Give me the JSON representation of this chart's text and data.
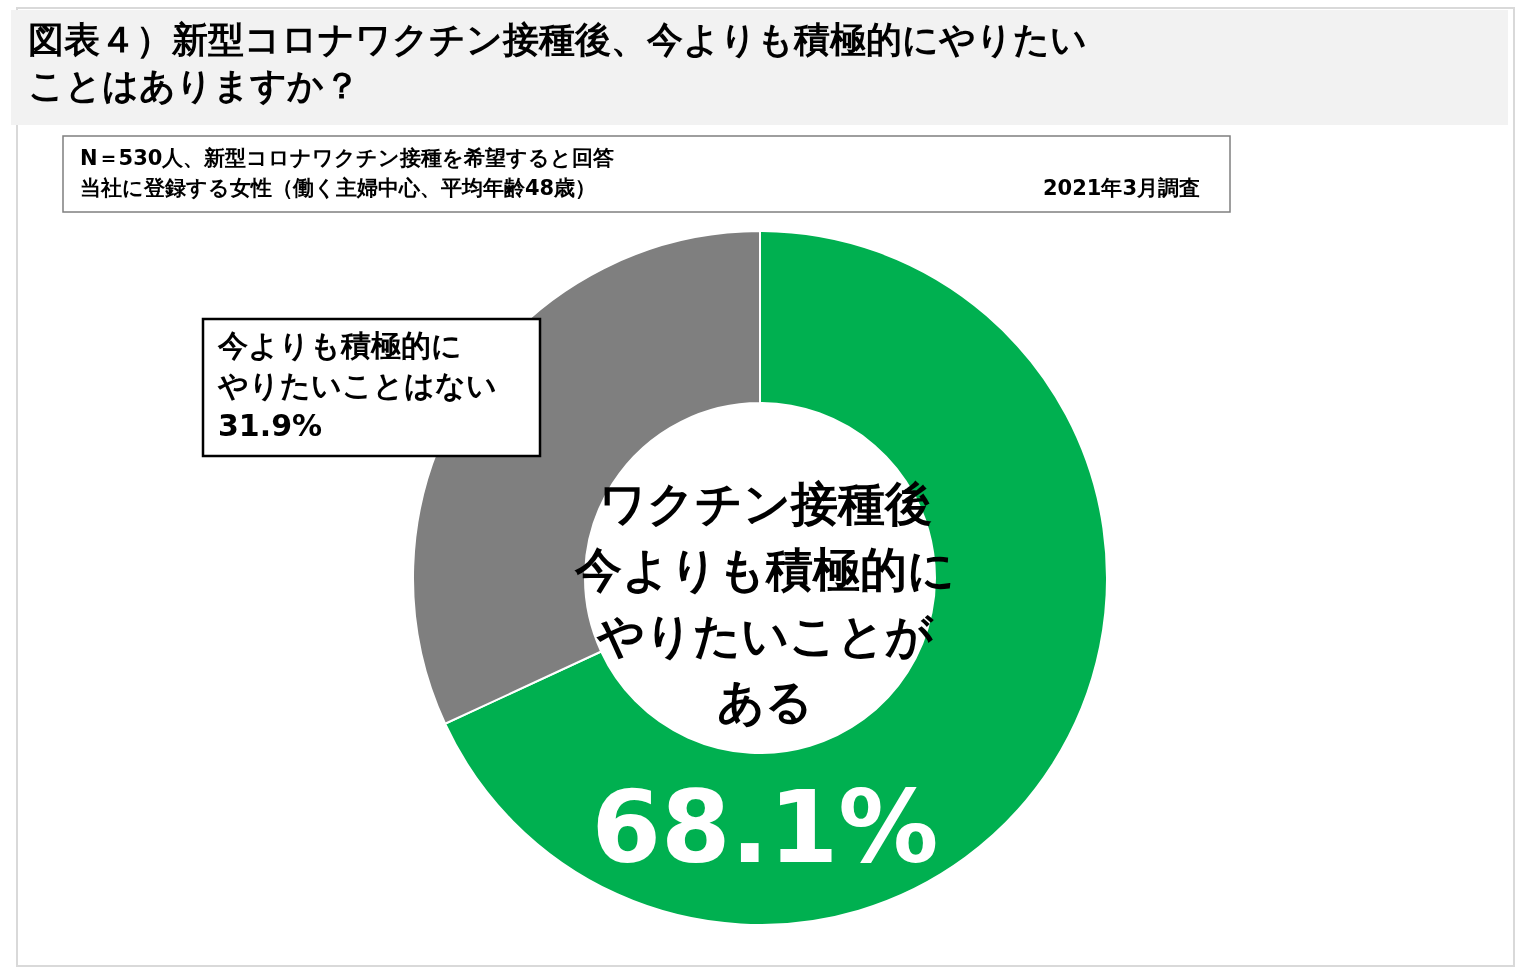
{
  "chart_data": {
    "type": "donut",
    "title": "図表４）新型コロナワクチン接種後、今よりも積極的にやりたいことはありますか？",
    "annotations": [
      "N＝530人、新型コロナワクチン接種を希望すると回答",
      "当社に登録する女性（働く主婦中心、平均年齢48歳）",
      "2021年3月調査"
    ],
    "categories": [
      "ワクチン接種後今よりも積極的にやりたいことがある",
      "今よりも積極的にやりたいことはない"
    ],
    "values": [
      68.1,
      31.9
    ],
    "colors": [
      "#00b050",
      "#7f7f7f"
    ],
    "value_labels": [
      "68.1%",
      "31.9%"
    ]
  }
}
